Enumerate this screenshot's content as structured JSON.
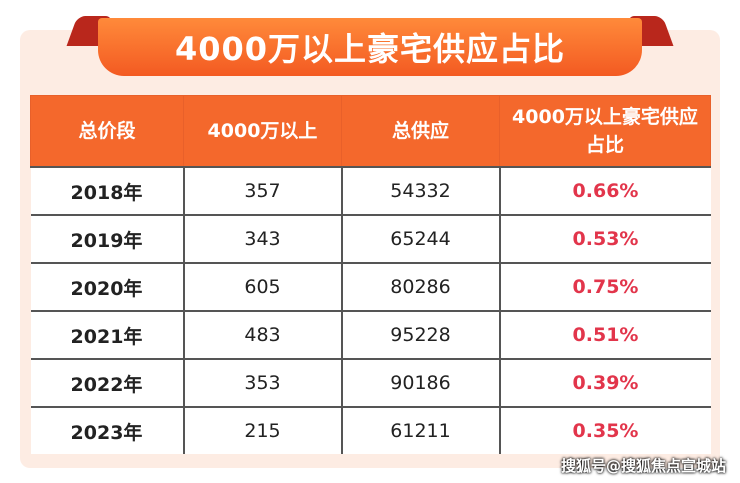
{
  "header": {
    "title": "4000万以上豪宅供应占比"
  },
  "table": {
    "columns": [
      "总价段",
      "4000万以上",
      "总供应",
      "4000万以上豪宅供应占比"
    ],
    "rows": [
      [
        "2018年",
        "357",
        "54332",
        "0.66%"
      ],
      [
        "2019年",
        "343",
        "65244",
        "0.53%"
      ],
      [
        "2020年",
        "605",
        "80286",
        "0.75%"
      ],
      [
        "2021年",
        "483",
        "95228",
        "0.51%"
      ],
      [
        "2022年",
        "353",
        "90186",
        "0.39%"
      ],
      [
        "2023年",
        "215",
        "61211",
        "0.35%"
      ]
    ]
  },
  "watermark": "搜狐号@搜狐焦点宣城站"
}
